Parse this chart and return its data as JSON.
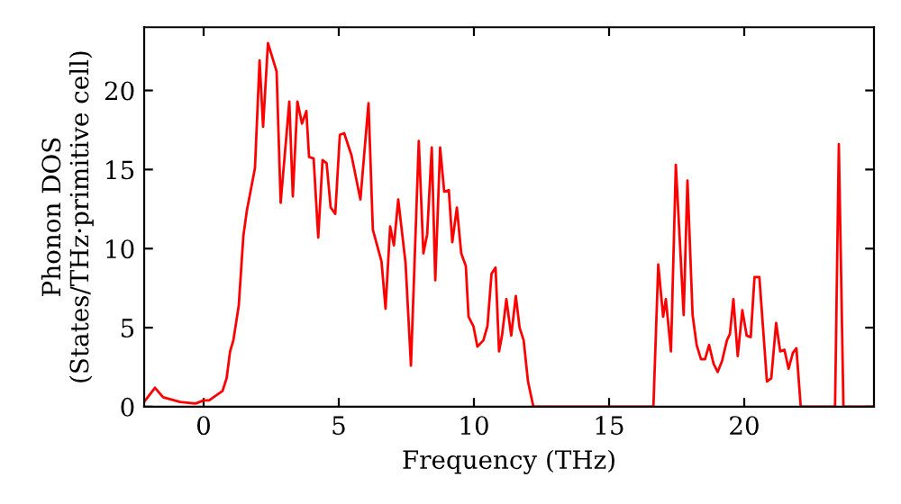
{
  "chart_data": {
    "type": "line",
    "xlabel": "Frequency (THz)",
    "ylabel": "Phonon DOS\n(States/THz·primitive cell)",
    "xlim": [
      -2.2,
      24.8
    ],
    "ylim": [
      0,
      24
    ],
    "xticks": [
      0,
      5,
      10,
      15,
      20
    ],
    "yticks": [
      0,
      5,
      10,
      15,
      20
    ],
    "grid": false,
    "marker": "none",
    "line_style": "solid",
    "series": [
      {
        "color": "#ff0000",
        "x": [
          -2.2,
          -1.8,
          -1.5,
          -0.87,
          -0.3,
          0,
          0.2,
          0.7,
          0.85,
          0.98,
          1.1,
          1.3,
          1.47,
          1.6,
          1.9,
          2.07,
          2.2,
          2.38,
          2.7,
          2.85,
          3.17,
          3.3,
          3.47,
          3.64,
          3.8,
          3.9,
          4.07,
          4.24,
          4.4,
          4.55,
          4.7,
          4.87,
          5.04,
          5.2,
          5.47,
          5.8,
          6.1,
          6.26,
          6.58,
          6.73,
          6.9,
          7.04,
          7.2,
          7.47,
          7.67,
          7.96,
          8.13,
          8.27,
          8.44,
          8.57,
          8.75,
          8.9,
          9.07,
          9.2,
          9.37,
          9.53,
          9.7,
          9.8,
          9.98,
          10.13,
          10.35,
          10.5,
          10.65,
          10.8,
          10.93,
          11.04,
          11.2,
          11.38,
          11.55,
          11.69,
          11.84,
          12.0,
          12.2,
          16.64,
          16.82,
          17.0,
          17.1,
          17.29,
          17.47,
          17.76,
          17.9,
          18.09,
          18.24,
          18.4,
          18.55,
          18.7,
          18.87,
          19.02,
          19.18,
          19.36,
          19.47,
          19.6,
          19.76,
          19.93,
          20.09,
          20.24,
          20.38,
          20.56,
          20.84,
          21.0,
          21.18,
          21.33,
          21.49,
          21.64,
          21.8,
          21.93,
          22.09,
          23.36,
          23.5,
          23.67,
          24.8
        ],
        "values": [
          0.3,
          1.2,
          0.6,
          0.3,
          0.2,
          0.4,
          0.4,
          1.0,
          1.8,
          3.5,
          4.2,
          6.4,
          10.8,
          12.4,
          15.1,
          21.9,
          17.7,
          23,
          21.2,
          12.9,
          19.3,
          13.3,
          19.3,
          17.9,
          18.7,
          15.8,
          15.7,
          10.7,
          15.6,
          15.4,
          12.6,
          12.2,
          17.2,
          17.3,
          15.9,
          13.1,
          19.2,
          11.2,
          9.2,
          6.2,
          11.4,
          10.2,
          13.1,
          9.1,
          2.6,
          16.8,
          9.7,
          10.9,
          16.4,
          8.0,
          16.4,
          13.6,
          13.7,
          10.4,
          12.6,
          9.7,
          8.9,
          5.7,
          5.1,
          3.8,
          4.2,
          5.1,
          8.4,
          8.8,
          3.5,
          4.5,
          6.8,
          4.5,
          7.0,
          5.0,
          4.2,
          1.6,
          0,
          0,
          9.0,
          5.7,
          6.8,
          3.5,
          15.3,
          5.8,
          14.3,
          5.8,
          3.9,
          3.0,
          3.0,
          3.9,
          2.7,
          2.2,
          2.9,
          4.2,
          4.6,
          6.8,
          3.2,
          6.1,
          4.5,
          4.4,
          8.2,
          8.2,
          1.6,
          1.8,
          5.3,
          3.5,
          3.6,
          2.4,
          3.4,
          3.7,
          0,
          0,
          16.6,
          0,
          0
        ]
      }
    ]
  }
}
